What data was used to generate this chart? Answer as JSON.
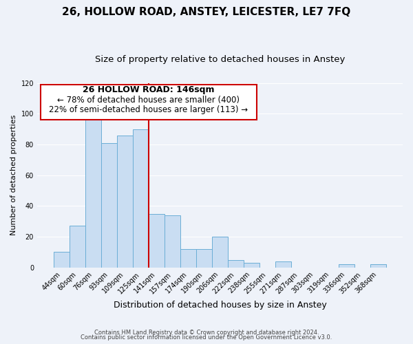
{
  "title": "26, HOLLOW ROAD, ANSTEY, LEICESTER, LE7 7FQ",
  "subtitle": "Size of property relative to detached houses in Anstey",
  "xlabel": "Distribution of detached houses by size in Anstey",
  "ylabel": "Number of detached properties",
  "bar_labels": [
    "44sqm",
    "60sqm",
    "76sqm",
    "93sqm",
    "109sqm",
    "125sqm",
    "141sqm",
    "157sqm",
    "174sqm",
    "190sqm",
    "206sqm",
    "222sqm",
    "238sqm",
    "255sqm",
    "271sqm",
    "287sqm",
    "303sqm",
    "319sqm",
    "336sqm",
    "352sqm",
    "368sqm"
  ],
  "bar_values": [
    10,
    27,
    99,
    81,
    86,
    90,
    35,
    34,
    12,
    12,
    20,
    5,
    3,
    0,
    4,
    0,
    0,
    0,
    2,
    0,
    2
  ],
  "bar_color": "#c9ddf2",
  "bar_edge_color": "#6baed6",
  "ylim": [
    0,
    120
  ],
  "yticks": [
    0,
    20,
    40,
    60,
    80,
    100,
    120
  ],
  "red_line_index": 6,
  "annotation_title": "26 HOLLOW ROAD: 146sqm",
  "annotation_line1": "← 78% of detached houses are smaller (400)",
  "annotation_line2": "22% of semi-detached houses are larger (113) →",
  "annotation_box_color": "#ffffff",
  "annotation_box_edge": "#cc0000",
  "red_line_color": "#cc0000",
  "footer1": "Contains HM Land Registry data © Crown copyright and database right 2024.",
  "footer2": "Contains public sector information licensed under the Open Government Licence v3.0.",
  "background_color": "#eef2f9",
  "grid_color": "#ffffff",
  "title_fontsize": 11,
  "subtitle_fontsize": 9.5,
  "xlabel_fontsize": 9,
  "ylabel_fontsize": 8,
  "tick_fontsize": 7,
  "ann_title_fontsize": 9,
  "ann_text_fontsize": 8.5,
  "footer_fontsize": 6
}
